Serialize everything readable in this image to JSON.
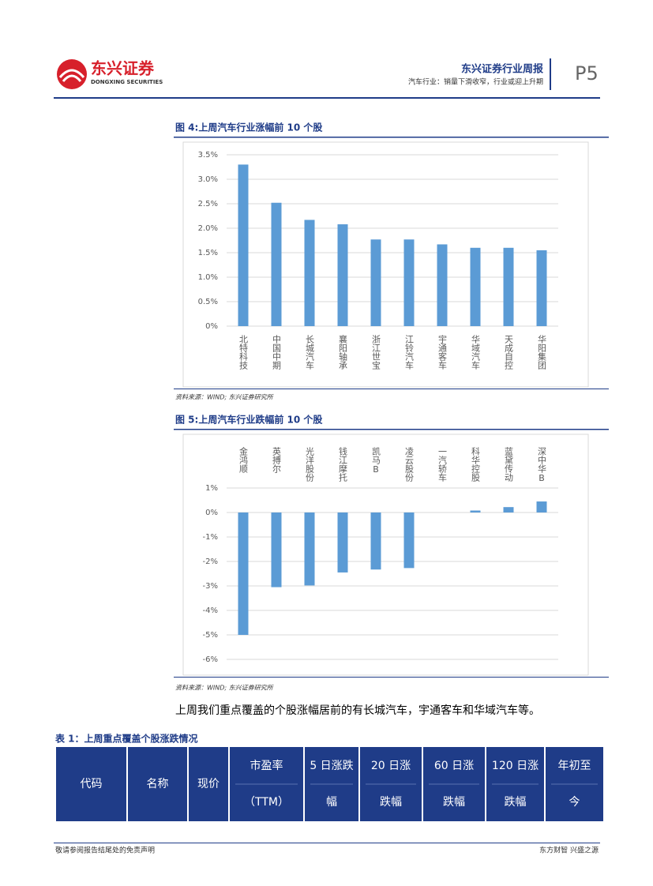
{
  "header": {
    "brand": "东兴证券",
    "brand_en": "DONGXING SECURITIES",
    "report": "东兴证券行业周报",
    "subtitle": "汽车行业：销量下滑收窄，行业或迎上升期",
    "page": "P5"
  },
  "chart_data": [
    {
      "type": "bar",
      "title": "图 4:上周汽车行业涨幅前 10 个股",
      "source": "资料来源：WIND; 东兴证券研究所",
      "color": "#5b9bd5",
      "grid": true,
      "categories": [
        "北特科技",
        "中国中期",
        "长城汽车",
        "襄阳轴承",
        "浙江世宝",
        "江铃汽车",
        "宇通客车",
        "华域汽车",
        "天成自控",
        "华阳集团"
      ],
      "values": [
        3.3,
        2.52,
        2.17,
        2.08,
        1.77,
        1.77,
        1.67,
        1.6,
        1.6,
        1.55
      ],
      "ylim": [
        0,
        3.5
      ],
      "yticks": [
        {
          "value": 0,
          "label": "0%"
        },
        {
          "value": 0.5,
          "label": "0.5%"
        },
        {
          "value": 1,
          "label": "1.0%"
        },
        {
          "value": 1.5,
          "label": "1.5%"
        },
        {
          "value": 2,
          "label": "2.0%"
        },
        {
          "value": 2.5,
          "label": "2.5%"
        },
        {
          "value": 3,
          "label": "3.0%"
        },
        {
          "value": 3.5,
          "label": "3.5%"
        }
      ]
    },
    {
      "type": "bar",
      "title": "图 5:上周汽车行业跌幅前 10 个股",
      "source": "资料来源：WIND; 东兴证券研究所",
      "color": "#5b9bd5",
      "grid": true,
      "categories": [
        "金鸿顺",
        "英搏尔",
        "光洋股份",
        "钱江摩托",
        "凯马B",
        "凌云股份",
        "一汽轿车",
        "科华控股",
        "蓝黛传动",
        "深中华B"
      ],
      "values": [
        -5.0,
        -3.05,
        -2.98,
        -2.45,
        -2.33,
        -2.27,
        0,
        0.08,
        0.22,
        0.45
      ],
      "ylim": [
        -6,
        1
      ],
      "yticks": [
        {
          "value": 1,
          "label": "1%"
        },
        {
          "value": 0,
          "label": "0%"
        },
        {
          "value": -1,
          "label": "-1%"
        },
        {
          "value": -2,
          "label": "-2%"
        },
        {
          "value": -3,
          "label": "-3%"
        },
        {
          "value": -4,
          "label": "-4%"
        },
        {
          "value": -5,
          "label": "-5%"
        },
        {
          "value": -6,
          "label": "-6%"
        }
      ]
    }
  ],
  "paragraph": "上周我们重点覆盖的个股涨幅居前的有长城汽车，宇通客车和华域汽车等。",
  "table": {
    "title": "表 1：上周重点覆盖个股涨跌情况",
    "headers": [
      [
        "代码"
      ],
      [
        "名称"
      ],
      [
        "现价"
      ],
      [
        "市盈率",
        "（TTM）"
      ],
      [
        "5 日涨跌",
        "幅"
      ],
      [
        "20 日涨",
        "跌幅"
      ],
      [
        "60 日涨",
        "跌幅"
      ],
      [
        "120 日涨",
        "跌幅"
      ],
      [
        "年初至",
        "今"
      ]
    ]
  },
  "footer": {
    "left": "敬请参阅报告结尾处的免责声明",
    "right": "东方财智 兴盛之源"
  }
}
